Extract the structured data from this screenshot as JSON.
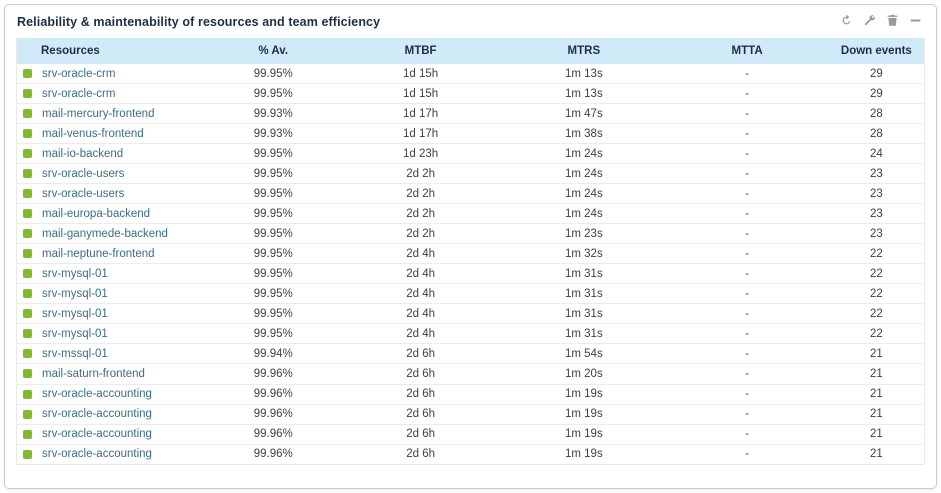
{
  "widget": {
    "title": "Reliability & maintenability of resources and team efficiency",
    "toolbar": {
      "refresh_icon": "refresh-icon",
      "configure_icon": "wrench-icon",
      "delete_icon": "trash-icon",
      "collapse_icon": "minus-icon"
    }
  },
  "colors": {
    "status_up": "#82b92e",
    "header_bg": "#d1eaf7",
    "title_text": "#1c2f45",
    "resource_link": "#3b6d85"
  },
  "table": {
    "columns": [
      "Resources",
      "% Av.",
      "MTBF",
      "MTRS",
      "MTTA",
      "Down events"
    ],
    "rows": [
      {
        "status": "up",
        "name": "srv-oracle-crm",
        "availability": "99.95%",
        "mtbf": "1d 15h",
        "mtrs": "1m 13s",
        "mtta": "-",
        "down_events": "29"
      },
      {
        "status": "up",
        "name": "srv-oracle-crm",
        "availability": "99.95%",
        "mtbf": "1d 15h",
        "mtrs": "1m 13s",
        "mtta": "-",
        "down_events": "29"
      },
      {
        "status": "up",
        "name": "mail-mercury-frontend",
        "availability": "99.93%",
        "mtbf": "1d 17h",
        "mtrs": "1m 47s",
        "mtta": "-",
        "down_events": "28"
      },
      {
        "status": "up",
        "name": "mail-venus-frontend",
        "availability": "99.93%",
        "mtbf": "1d 17h",
        "mtrs": "1m 38s",
        "mtta": "-",
        "down_events": "28"
      },
      {
        "status": "up",
        "name": "mail-io-backend",
        "availability": "99.95%",
        "mtbf": "1d 23h",
        "mtrs": "1m 24s",
        "mtta": "-",
        "down_events": "24"
      },
      {
        "status": "up",
        "name": "srv-oracle-users",
        "availability": "99.95%",
        "mtbf": "2d 2h",
        "mtrs": "1m 24s",
        "mtta": "-",
        "down_events": "23"
      },
      {
        "status": "up",
        "name": "srv-oracle-users",
        "availability": "99.95%",
        "mtbf": "2d 2h",
        "mtrs": "1m 24s",
        "mtta": "-",
        "down_events": "23"
      },
      {
        "status": "up",
        "name": "mail-europa-backend",
        "availability": "99.95%",
        "mtbf": "2d 2h",
        "mtrs": "1m 24s",
        "mtta": "-",
        "down_events": "23"
      },
      {
        "status": "up",
        "name": "mail-ganymede-backend",
        "availability": "99.95%",
        "mtbf": "2d 2h",
        "mtrs": "1m 23s",
        "mtta": "-",
        "down_events": "23"
      },
      {
        "status": "up",
        "name": "mail-neptune-frontend",
        "availability": "99.95%",
        "mtbf": "2d 4h",
        "mtrs": "1m 32s",
        "mtta": "-",
        "down_events": "22"
      },
      {
        "status": "up",
        "name": "srv-mysql-01",
        "availability": "99.95%",
        "mtbf": "2d 4h",
        "mtrs": "1m 31s",
        "mtta": "-",
        "down_events": "22"
      },
      {
        "status": "up",
        "name": "srv-mysql-01",
        "availability": "99.95%",
        "mtbf": "2d 4h",
        "mtrs": "1m 31s",
        "mtta": "-",
        "down_events": "22"
      },
      {
        "status": "up",
        "name": "srv-mysql-01",
        "availability": "99.95%",
        "mtbf": "2d 4h",
        "mtrs": "1m 31s",
        "mtta": "-",
        "down_events": "22"
      },
      {
        "status": "up",
        "name": "srv-mysql-01",
        "availability": "99.95%",
        "mtbf": "2d 4h",
        "mtrs": "1m 31s",
        "mtta": "-",
        "down_events": "22"
      },
      {
        "status": "up",
        "name": "srv-mssql-01",
        "availability": "99.94%",
        "mtbf": "2d 6h",
        "mtrs": "1m 54s",
        "mtta": "-",
        "down_events": "21"
      },
      {
        "status": "up",
        "name": "mail-saturn-frontend",
        "availability": "99.96%",
        "mtbf": "2d 6h",
        "mtrs": "1m 20s",
        "mtta": "-",
        "down_events": "21"
      },
      {
        "status": "up",
        "name": "srv-oracle-accounting",
        "availability": "99.96%",
        "mtbf": "2d 6h",
        "mtrs": "1m 19s",
        "mtta": "-",
        "down_events": "21"
      },
      {
        "status": "up",
        "name": "srv-oracle-accounting",
        "availability": "99.96%",
        "mtbf": "2d 6h",
        "mtrs": "1m 19s",
        "mtta": "-",
        "down_events": "21"
      },
      {
        "status": "up",
        "name": "srv-oracle-accounting",
        "availability": "99.96%",
        "mtbf": "2d 6h",
        "mtrs": "1m 19s",
        "mtta": "-",
        "down_events": "21"
      },
      {
        "status": "up",
        "name": "srv-oracle-accounting",
        "availability": "99.96%",
        "mtbf": "2d 6h",
        "mtrs": "1m 19s",
        "mtta": "-",
        "down_events": "21"
      }
    ]
  }
}
